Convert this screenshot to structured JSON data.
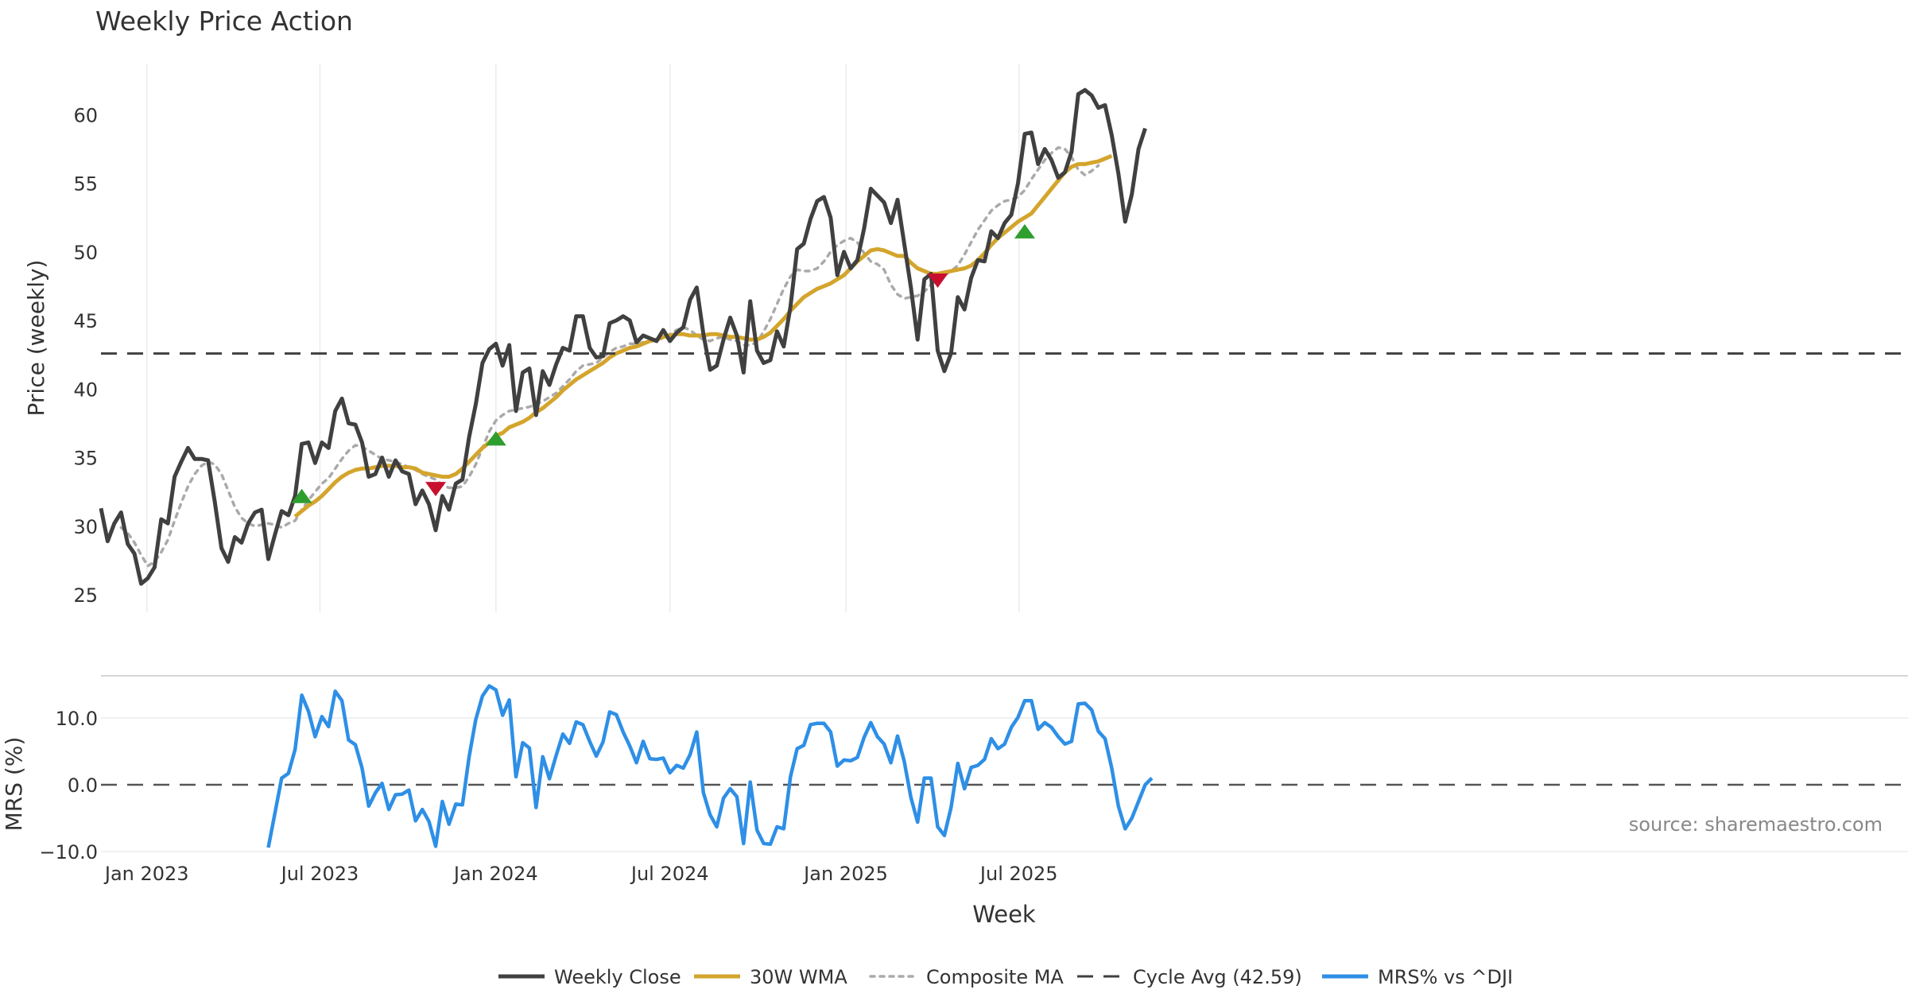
{
  "chart_data": [
    {
      "type": "line",
      "title": "Weekly Price Action",
      "xlabel": "",
      "ylabel": "Price (weekly)",
      "ylim": [
        23.5,
        64
      ],
      "yticks": [
        25,
        30,
        35,
        40,
        45,
        50,
        55,
        60
      ],
      "grid": "x",
      "x_start": "2022-11-14",
      "x_step_days": 7,
      "series": [
        {
          "name": "Weekly Close",
          "color": "#404040",
          "style": "solid",
          "start_index": 0,
          "values": [
            31.3,
            28.9,
            30.2,
            31.0,
            28.7,
            28.0,
            25.8,
            26.2,
            27.0,
            30.5,
            30.2,
            33.6,
            34.7,
            35.7,
            34.9,
            34.9,
            34.8,
            31.8,
            28.4,
            27.4,
            29.2,
            28.8,
            30.2,
            31.0,
            31.2,
            27.6,
            29.4,
            31.1,
            30.8,
            32.2,
            36.0,
            36.1,
            34.6,
            36.1,
            35.7,
            38.4,
            39.3,
            37.5,
            37.4,
            36.1,
            33.6,
            33.8,
            35.0,
            33.6,
            34.8,
            34.0,
            33.8,
            31.6,
            32.6,
            31.6,
            29.7,
            32.2,
            31.2,
            33.1,
            33.4,
            36.5,
            38.9,
            41.9,
            42.9,
            43.3,
            41.7,
            43.2,
            38.4,
            41.2,
            41.5,
            38.1,
            41.3,
            40.3,
            41.8,
            43.0,
            42.8,
            45.3,
            45.3,
            43.0,
            42.3,
            42.4,
            44.8,
            45.0,
            45.3,
            45.0,
            43.4,
            43.9,
            43.7,
            43.5,
            44.3,
            43.5,
            44.1,
            44.5,
            46.5,
            47.4,
            44.0,
            41.4,
            41.7,
            43.6,
            45.2,
            43.9,
            41.2,
            46.4,
            42.8,
            41.9,
            42.1,
            44.2,
            43.1,
            46.0,
            50.2,
            50.6,
            52.4,
            53.7,
            54.0,
            52.5,
            48.3,
            50.0,
            48.8,
            49.4,
            51.7,
            54.6,
            54.1,
            53.6,
            52.1,
            53.8,
            50.6,
            47.4,
            43.6,
            48.0,
            48.4,
            42.8,
            41.3,
            42.6,
            46.7,
            45.8,
            48.1,
            49.4,
            49.3,
            51.5,
            51.0,
            52.1,
            52.7,
            55.0,
            58.6,
            58.7,
            56.4,
            57.5,
            56.7,
            55.4,
            55.8,
            57.3,
            61.5,
            61.8,
            61.4,
            60.5,
            60.7,
            58.5,
            55.7,
            52.2,
            54.2,
            57.5,
            59.0
          ]
        },
        {
          "name": "30W WMA",
          "color": "#D4A52C",
          "style": "solid",
          "start_index": 29,
          "values": [
            30.7,
            31.1,
            31.5,
            31.8,
            32.2,
            32.7,
            33.2,
            33.6,
            33.9,
            34.1,
            34.2,
            34.2,
            34.3,
            34.4,
            34.4,
            34.4,
            34.3,
            34.3,
            34.2,
            33.9,
            33.8,
            33.7,
            33.6,
            33.6,
            33.8,
            34.2,
            34.7,
            35.2,
            35.7,
            36.1,
            36.6,
            36.8,
            37.2,
            37.4,
            37.6,
            37.9,
            38.3,
            38.6,
            39.0,
            39.4,
            39.9,
            40.3,
            40.7,
            41.0,
            41.3,
            41.6,
            41.9,
            42.3,
            42.6,
            42.8,
            43.0,
            43.1,
            43.3,
            43.5,
            43.6,
            43.8,
            43.9,
            44.0,
            44.0,
            43.9,
            43.9,
            43.9,
            44.0,
            44.0,
            43.9,
            43.8,
            43.8,
            43.7,
            43.6,
            43.6,
            43.8,
            44.1,
            44.6,
            45.1,
            45.7,
            46.2,
            46.7,
            47.0,
            47.3,
            47.5,
            47.7,
            48.0,
            48.3,
            48.8,
            49.3,
            49.7,
            50.1,
            50.2,
            50.1,
            49.9,
            49.7,
            49.7,
            49.2,
            48.8,
            48.6,
            48.4,
            48.4,
            48.5,
            48.6,
            48.7,
            48.8,
            49.0,
            49.4,
            49.9,
            50.5,
            51.0,
            51.4,
            51.8,
            52.2,
            52.5,
            52.8,
            53.4,
            54.0,
            54.6,
            55.2,
            55.8,
            56.2,
            56.4,
            56.4,
            56.5,
            56.6,
            56.8,
            57.0
          ]
        },
        {
          "name": "Composite MA",
          "color": "#AAAAAA",
          "style": "dotted",
          "start_index": 3,
          "values": [
            29.9,
            29.5,
            28.8,
            27.9,
            27.1,
            27.4,
            28.1,
            29.0,
            30.4,
            31.7,
            32.9,
            33.8,
            34.4,
            34.7,
            34.5,
            33.8,
            32.6,
            31.4,
            30.6,
            30.2,
            30.0,
            30.1,
            30.2,
            30.1,
            29.9,
            30.2,
            30.4,
            31.2,
            31.9,
            32.5,
            33.1,
            33.5,
            34.2,
            34.9,
            35.5,
            35.9,
            35.8,
            35.5,
            35.2,
            34.9,
            34.8,
            34.7,
            34.5,
            34.3,
            34.1,
            33.8,
            33.6,
            33.4,
            33.0,
            32.8,
            32.8,
            32.9,
            33.6,
            34.5,
            35.7,
            36.9,
            37.7,
            38.1,
            38.4,
            38.5,
            38.6,
            38.7,
            38.9,
            39.1,
            39.4,
            39.7,
            40.2,
            40.7,
            41.3,
            41.7,
            41.8,
            41.9,
            42.3,
            42.7,
            43.0,
            43.1,
            43.3,
            43.3,
            43.4,
            43.5,
            43.6,
            43.7,
            44.0,
            44.3,
            44.5,
            44.3,
            43.9,
            43.6,
            43.5,
            43.7,
            43.8,
            43.6,
            43.5,
            43.2,
            43.2,
            43.4,
            44.2,
            45.1,
            46.2,
            47.3,
            48.2,
            48.7,
            48.6,
            48.6,
            48.8,
            49.3,
            50.0,
            50.5,
            50.8,
            51.0,
            50.7,
            49.9,
            49.3,
            49.1,
            48.7,
            47.6,
            46.9,
            46.6,
            46.7,
            46.8,
            47.1,
            47.6,
            48.0,
            48.3,
            48.6,
            49.0,
            49.8,
            50.7,
            51.6,
            52.3,
            53.0,
            53.4,
            53.7,
            53.8,
            54.0,
            54.5,
            55.3,
            56.0,
            56.7,
            57.2,
            57.6,
            57.5,
            56.9,
            56.0,
            55.6,
            55.9,
            56.3
          ]
        },
        {
          "name": "Cycle Avg (42.59)",
          "color": "#404040",
          "style": "dashed",
          "constant": 42.59
        }
      ],
      "signals": [
        {
          "type": "buy",
          "date_index": 30,
          "value": 32.2,
          "color": "#2E9E2E"
        },
        {
          "type": "sell",
          "date_index": 50,
          "value": 32.7,
          "color": "#C8102E"
        },
        {
          "type": "buy",
          "date_index": 59,
          "value": 36.4,
          "color": "#2E9E2E"
        },
        {
          "type": "sell",
          "date_index": 125,
          "value": 47.9,
          "color": "#C8102E"
        },
        {
          "type": "buy",
          "date_index": 138,
          "value": 51.5,
          "color": "#2E9E2E"
        }
      ]
    },
    {
      "type": "line",
      "ylabel": "MRS (%)",
      "xlabel": "Week",
      "ylim": [
        -10,
        16.5
      ],
      "yticks": [
        -10.0,
        0.0,
        10.0
      ],
      "ytick_labels": [
        "−10.0",
        "0.0",
        "10.0"
      ],
      "grid": "y",
      "x_tick_labels": [
        "Jan 2023",
        "Jul 2023",
        "Jan 2024",
        "Jul 2024",
        "Jan 2025",
        "Jul 2025"
      ],
      "x_tick_dates": [
        "2023-01-01",
        "2023-07-01",
        "2024-01-01",
        "2024-07-01",
        "2025-01-01",
        "2025-07-01"
      ],
      "zero_line": 0.0,
      "series": [
        {
          "name": "MRS% vs ^DJI",
          "color": "#2E8FE6",
          "style": "solid",
          "start_index": 25,
          "values": [
            -9.4,
            -4.2,
            1.0,
            1.7,
            5.3,
            13.4,
            11.0,
            7.2,
            10.2,
            8.7,
            14.0,
            12.6,
            6.7,
            6.0,
            2.5,
            -3.2,
            -1.2,
            0.2,
            -3.7,
            -1.5,
            -1.4,
            -0.8,
            -5.4,
            -3.7,
            -5.5,
            -9.2,
            -2.5,
            -5.9,
            -2.9,
            -3.0,
            4.2,
            9.8,
            13.3,
            14.8,
            14.2,
            10.4,
            12.7,
            1.2,
            6.3,
            5.5,
            -3.4,
            4.2,
            0.9,
            4.4,
            7.6,
            6.2,
            9.4,
            9.0,
            6.5,
            4.3,
            6.4,
            10.9,
            10.5,
            7.9,
            5.8,
            3.3,
            6.5,
            3.9,
            3.8,
            4.0,
            1.8,
            2.9,
            2.5,
            4.5,
            7.9,
            -1.2,
            -4.5,
            -6.3,
            -2.0,
            -0.6,
            -1.8,
            -8.8,
            0.4,
            -6.8,
            -8.8,
            -8.9,
            -6.3,
            -6.6,
            1.2,
            5.4,
            5.9,
            9.0,
            9.2,
            9.2,
            7.9,
            2.8,
            3.7,
            3.6,
            4.1,
            7.1,
            9.3,
            7.2,
            6.1,
            3.3,
            7.3,
            3.5,
            -1.9,
            -5.6,
            1.0,
            1.0,
            -6.3,
            -7.6,
            -3.4,
            3.2,
            -0.6,
            2.6,
            2.9,
            3.8,
            6.9,
            5.4,
            6.1,
            8.6,
            10.1,
            12.6,
            12.6,
            8.3,
            9.3,
            8.6,
            7.2,
            6.1,
            6.5,
            12.1,
            12.2,
            11.2,
            8.0,
            6.9,
            2.5,
            -3.2,
            -6.6,
            -5.0,
            -2.5,
            0.0,
            1.0
          ]
        }
      ],
      "annotations": [
        {
          "text": "source: sharemaestro.com",
          "color": "#888888"
        }
      ]
    }
  ],
  "legend": {
    "placement": "bottom-center",
    "items": [
      {
        "label": "Weekly Close",
        "color": "#404040",
        "style": "solid"
      },
      {
        "label": "30W WMA",
        "color": "#D4A52C",
        "style": "solid"
      },
      {
        "label": "Composite MA",
        "color": "#AAAAAA",
        "style": "dotted"
      },
      {
        "label": "Cycle Avg (42.59)",
        "color": "#404040",
        "style": "dashed"
      },
      {
        "label": "MRS% vs ^DJI",
        "color": "#2E8FE6",
        "style": "solid"
      }
    ]
  }
}
